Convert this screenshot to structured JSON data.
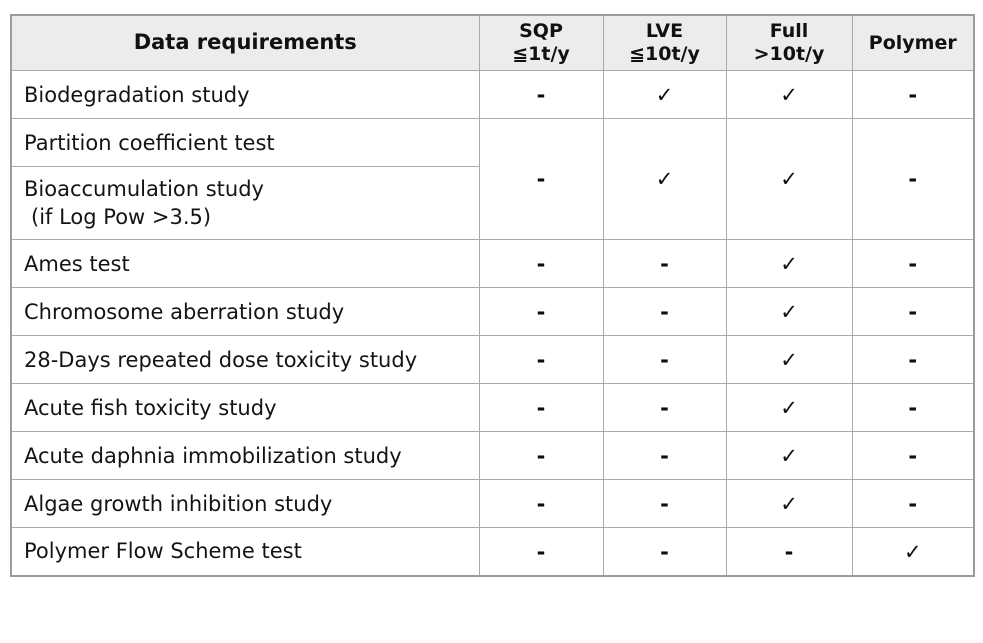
{
  "colors": {
    "header_bg": "#ececec",
    "grid_border": "#aaaaaa",
    "outer_border": "#9b9b9b",
    "text": "#141414"
  },
  "marks": {
    "yes": "✓",
    "no": "-"
  },
  "table": {
    "header": {
      "data_requirements": "Data requirements",
      "columns": [
        {
          "line1": "SQP",
          "line2": "≦1t/y"
        },
        {
          "line1": "LVE",
          "line2": "≦10t/y"
        },
        {
          "line1": "Full",
          "line2": ">10t/y"
        },
        {
          "line1": "Polymer",
          "line2": ""
        }
      ]
    },
    "rows": [
      {
        "label": "Biodegradation study",
        "values": [
          "-",
          "✓",
          "✓",
          "-"
        ]
      },
      {
        "label": "Partition coefficient test",
        "values": [
          "-",
          "✓",
          "✓",
          "-"
        ]
      },
      {
        "label": "Bioaccumulation study",
        "label2": "(if Log Pow >3.5)"
      },
      {
        "label": "Ames test",
        "values": [
          "-",
          "-",
          "✓",
          "-"
        ]
      },
      {
        "label": "Chromosome aberration study",
        "values": [
          "-",
          "-",
          "✓",
          "-"
        ]
      },
      {
        "label": "28-Days repeated dose toxicity study",
        "values": [
          "-",
          "-",
          "✓",
          "-"
        ]
      },
      {
        "label": "Acute fish toxicity study",
        "values": [
          "-",
          "-",
          "✓",
          "-"
        ]
      },
      {
        "label": "Acute daphnia immobilization study",
        "values": [
          "-",
          "-",
          "✓",
          "-"
        ]
      },
      {
        "label": "Algae growth inhibition study",
        "values": [
          "-",
          "-",
          "✓",
          "-"
        ]
      },
      {
        "label": "Polymer Flow Scheme test",
        "values": [
          "-",
          "-",
          "-",
          "✓"
        ]
      }
    ]
  }
}
